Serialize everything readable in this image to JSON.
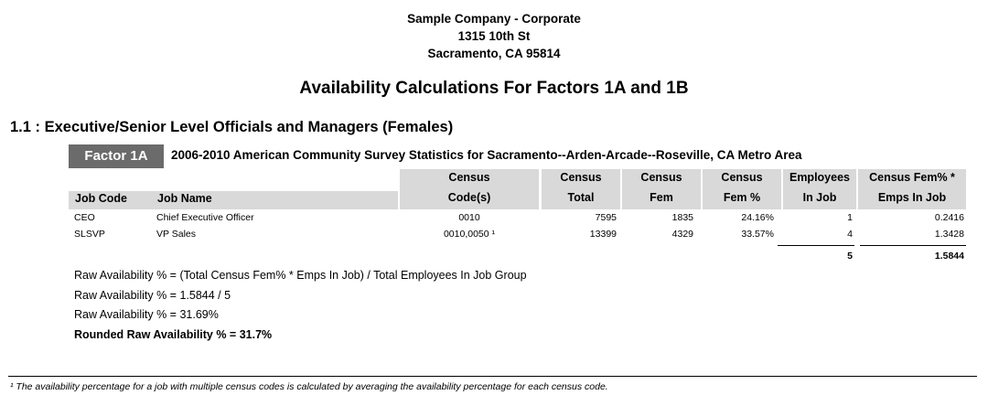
{
  "company": {
    "name": "Sample Company - Corporate",
    "address1": "1315 10th St",
    "address2": "Sacramento, CA 95814"
  },
  "report_title": "Availability Calculations For Factors 1A and 1B",
  "section_title": "1.1 : Executive/Senior Level Officials and Managers (Females)",
  "factor": {
    "label": "Factor 1A",
    "description": "2006-2010 American Community Survey Statistics for Sacramento--Arden-Arcade--Roseville, CA Metro Area"
  },
  "table": {
    "headers": {
      "job_code": "Job Code",
      "job_name": "Job Name",
      "census_codes_1": "Census",
      "census_codes_2": "Code(s)",
      "census_total_1": "Census",
      "census_total_2": "Total",
      "census_fem_1": "Census",
      "census_fem_2": "Fem",
      "census_fem_pct_1": "Census",
      "census_fem_pct_2": "Fem %",
      "employees_1": "Employees",
      "employees_2": "In Job",
      "fem_emps_1": "Census Fem% *",
      "fem_emps_2": "Emps In Job"
    },
    "rows": [
      {
        "job_code": "CEO",
        "job_name": "Chief Executive Officer",
        "census_codes": "0010",
        "census_total": "7595",
        "census_fem": "1835",
        "census_fem_pct": "24.16%",
        "employees": "1",
        "fem_emps": "0.2416"
      },
      {
        "job_code": "SLSVP",
        "job_name": "VP Sales",
        "census_codes": "0010,0050 ¹",
        "census_total": "13399",
        "census_fem": "4329",
        "census_fem_pct": "33.57%",
        "employees": "4",
        "fem_emps": "1.3428"
      }
    ],
    "totals": {
      "employees": "5",
      "fem_emps": "1.5844"
    }
  },
  "formulas": {
    "line1": "Raw Availability % = (Total Census Fem% * Emps In Job) / Total Employees In Job Group",
    "line2": "Raw Availability % = 1.5844 / 5",
    "line3": "Raw Availability % = 31.69%",
    "line4": "Rounded Raw Availability % = 31.7%"
  },
  "footnote": "¹ The availability percentage for a job with multiple census codes is calculated by averaging the availability percentage for each census code."
}
